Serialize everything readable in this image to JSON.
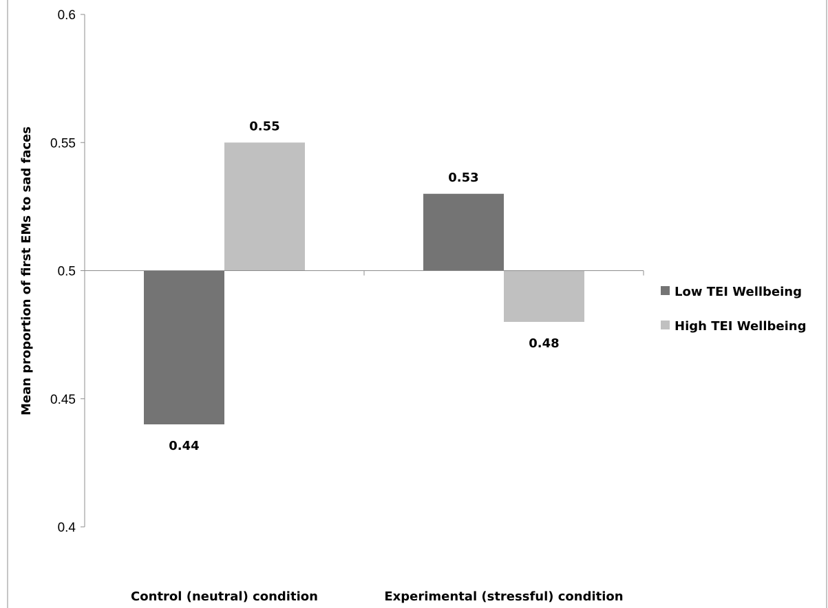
{
  "chart_data": {
    "type": "bar",
    "title": "",
    "xlabel": "",
    "ylabel": "Mean proportion of first EMs to sad faces",
    "ylim": [
      0.4,
      0.6
    ],
    "yticks": [
      "0.4",
      "0.45",
      "0.5",
      "0.55",
      "0.6"
    ],
    "baseline": 0.5,
    "categories": [
      "Control (neutral) condition",
      "Experimental (stressful) condition"
    ],
    "series": [
      {
        "name": "Low TEI Wellbeing",
        "color": "#747474",
        "values": [
          0.44,
          0.53
        ],
        "labels": [
          "0.44",
          "0.53"
        ]
      },
      {
        "name": "High TEI Wellbeing",
        "color": "#c0c0c0",
        "values": [
          0.55,
          0.48
        ],
        "labels": [
          "0.55",
          "0.48"
        ]
      }
    ],
    "grid": false,
    "legend_position": "right"
  }
}
